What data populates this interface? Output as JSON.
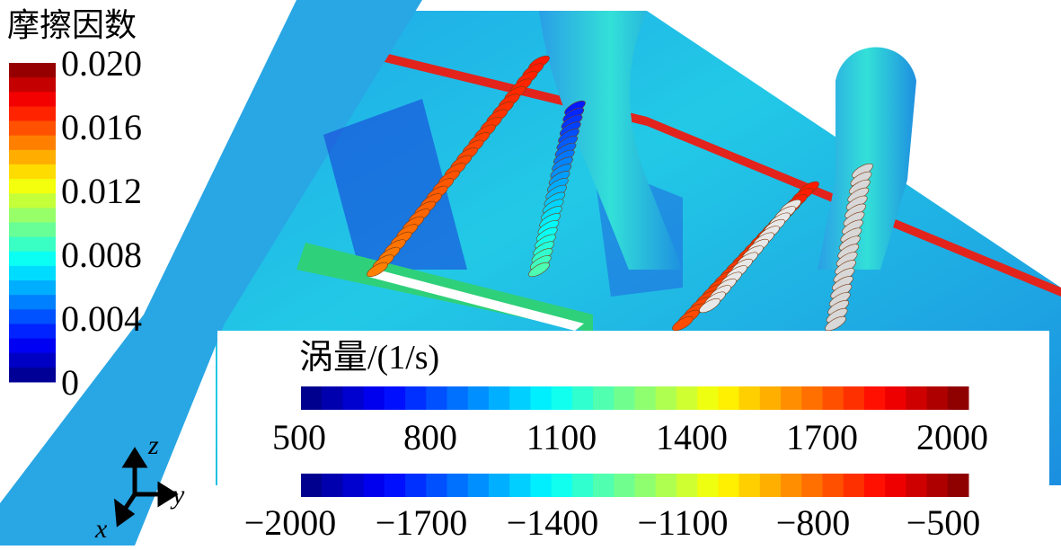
{
  "friction_legend": {
    "title": "摩擦因数",
    "ticks": [
      "0.020",
      "0.016",
      "0.012",
      "0.008",
      "0.004",
      "0"
    ]
  },
  "vorticity_legend": {
    "title": "涡量/(1/s)",
    "positive_ticks": [
      "500",
      "800",
      "1100",
      "1400",
      "1700",
      "2000"
    ],
    "negative_ticks": [
      "−2000",
      "−1700",
      "−1400",
      "−1100",
      "−800",
      "−500"
    ]
  },
  "axes": {
    "z": "z",
    "y": "y",
    "x": "x"
  }
}
